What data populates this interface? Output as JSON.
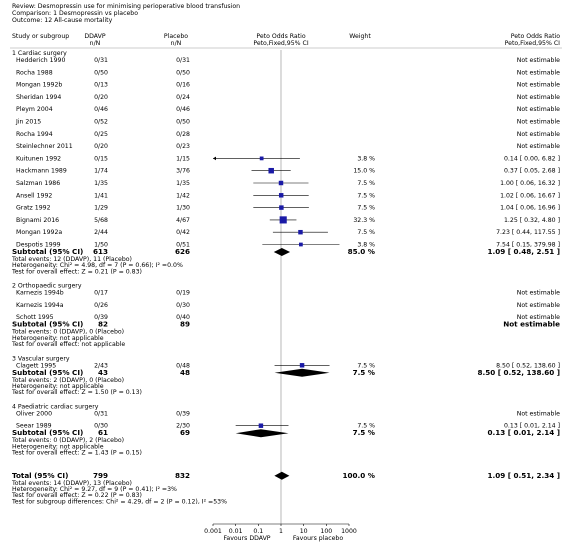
{
  "chart_data": {
    "type": "forest",
    "review": "Review:  Desmopressin use for minimising perioperative blood transfusion",
    "comparison": "Comparison:  1 Desmopressin vs placebo",
    "outcome": "Outcome:  12 All-cause mortality",
    "headers": [
      "Study or subgroup",
      "DDAVP",
      "n/N",
      "Placebo",
      "n/N",
      "Peto Odds Ratio",
      "Peto,Fixed,95% CI",
      "Weight",
      "Peto Odds Ratio",
      "Peto,Fixed,95% CI"
    ],
    "log_scale": true,
    "color": "#1a1aa6",
    "xlim": [
      0.001,
      1000
    ],
    "xticks": [
      0.001,
      0.01,
      0.1,
      1,
      10,
      100,
      1000
    ],
    "favours_left": "Favours DDAVP",
    "favours_right": "Favours placebo",
    "groups": [
      {
        "title": "1 Cardiac surgery",
        "studies": [
          {
            "name": "Hedderich 1990",
            "n1": "0/31",
            "n2": "0/31",
            "value_label": "Not estimable"
          },
          {
            "name": "Rocha 1988",
            "n1": "0/50",
            "n2": "0/50",
            "value_label": "Not estimable"
          },
          {
            "name": "Mongan 1992b",
            "n1": "0/13",
            "n2": "0/16",
            "value_label": "Not estimable"
          },
          {
            "name": "Sheridan 1994",
            "n1": "0/20",
            "n2": "0/24",
            "value_label": "Not estimable"
          },
          {
            "name": "Pleym 2004",
            "n1": "0/46",
            "n2": "0/46",
            "value_label": "Not estimable"
          },
          {
            "name": "Jin 2015",
            "n1": "0/52",
            "n2": "0/50",
            "value_label": "Not estimable"
          },
          {
            "name": "Rocha 1994",
            "n1": "0/25",
            "n2": "0/28",
            "value_label": "Not estimable"
          },
          {
            "name": "Steinlechner 2011",
            "n1": "0/20",
            "n2": "0/23",
            "value_label": "Not estimable"
          },
          {
            "name": "Kuitunen 1992",
            "n1": "0/15",
            "n2": "1/15",
            "weight": 3.8,
            "weight_label": "3.8 %",
            "or": 0.14,
            "ci": [
              0.0,
              6.82
            ],
            "value_label": "0.14 [ 0.00, 6.82 ]"
          },
          {
            "name": "Hackmann 1989",
            "n1": "1/74",
            "n2": "3/76",
            "weight": 15.0,
            "weight_label": "15.0 %",
            "or": 0.37,
            "ci": [
              0.05,
              2.68
            ],
            "value_label": "0.37 [ 0.05, 2.68 ]"
          },
          {
            "name": "Salzman 1986",
            "n1": "1/35",
            "n2": "1/35",
            "weight": 7.5,
            "weight_label": "7.5 %",
            "or": 1.0,
            "ci": [
              0.06,
              16.32
            ],
            "value_label": "1.00 [ 0.06, 16.32 ]"
          },
          {
            "name": "Ansell 1992",
            "n1": "1/41",
            "n2": "1/42",
            "weight": 7.5,
            "weight_label": "7.5 %",
            "or": 1.02,
            "ci": [
              0.06,
              16.67
            ],
            "value_label": "1.02 [ 0.06, 16.67 ]"
          },
          {
            "name": "Gratz 1992",
            "n1": "1/29",
            "n2": "1/30",
            "weight": 7.5,
            "weight_label": "7.5 %",
            "or": 1.04,
            "ci": [
              0.06,
              16.96
            ],
            "value_label": "1.04 [ 0.06, 16.96 ]"
          },
          {
            "name": "Bignami 2016",
            "n1": "5/68",
            "n2": "4/67",
            "weight": 32.3,
            "weight_label": "32.3 %",
            "or": 1.25,
            "ci": [
              0.32,
              4.8
            ],
            "value_label": "1.25 [ 0.32, 4.80 ]"
          },
          {
            "name": "Mongan 1992a",
            "n1": "2/44",
            "n2": "0/42",
            "weight": 7.5,
            "weight_label": "7.5 %",
            "or": 7.23,
            "ci": [
              0.44,
              117.55
            ],
            "value_label": "7.23 [ 0.44, 117.55 ]"
          },
          {
            "name": "Despotis 1999",
            "n1": "1/50",
            "n2": "0/51",
            "weight": 3.8,
            "weight_label": "3.8 %",
            "or": 7.54,
            "ci": [
              0.15,
              379.98
            ],
            "value_label": "7.54 [ 0.15, 379.98 ]"
          }
        ],
        "subtotal": {
          "label": "Subtotal (95% CI)",
          "n1": 613,
          "n2": 626,
          "weight_label": "85.0 %",
          "or": 1.09,
          "ci": [
            0.48,
            2.51
          ],
          "value_label": "1.09 [ 0.48, 2.51 ]"
        },
        "notes": [
          "Total events: 12 (DDAVP), 11 (Placebo)",
          "Heterogeneity: Chi² = 4.98, df = 7 (P = 0.66); I² =0.0%",
          "Test for overall effect: Z = 0.21 (P = 0.83)"
        ]
      },
      {
        "title": "2 Orthopaedic surgery",
        "studies": [
          {
            "name": "Karnezis 1994b",
            "n1": "0/17",
            "n2": "0/19",
            "value_label": "Not estimable"
          },
          {
            "name": "Karnezis 1994a",
            "n1": "0/26",
            "n2": "0/30",
            "value_label": "Not estimable"
          },
          {
            "name": "Schott 1995",
            "n1": "0/39",
            "n2": "0/40",
            "value_label": "Not estimable"
          }
        ],
        "subtotal": {
          "label": "Subtotal (95% CI)",
          "n1": 82,
          "n2": 89,
          "value_label": "Not estimable"
        },
        "notes": [
          "Total events: 0 (DDAVP), 0 (Placebo)",
          "Heterogeneity: not applicable",
          "Test for overall effect: not applicable"
        ]
      },
      {
        "title": "3 Vascular surgery",
        "studies": [
          {
            "name": "Clagett 1995",
            "n1": "2/43",
            "n2": "0/48",
            "weight": 7.5,
            "weight_label": "7.5 %",
            "or": 8.5,
            "ci": [
              0.52,
              138.6
            ],
            "value_label": "8.50 [ 0.52, 138.60 ]"
          }
        ],
        "subtotal": {
          "label": "Subtotal (95% CI)",
          "n1": 43,
          "n2": 48,
          "weight_label": "7.5 %",
          "or": 8.5,
          "ci": [
            0.52,
            138.6
          ],
          "value_label": "8.50 [ 0.52, 138.60 ]"
        },
        "notes": [
          "Total events: 2 (DDAVP), 0 (Placebo)",
          "Heterogeneity: not applicable",
          "Test for overall effect: Z = 1.50 (P = 0.13)"
        ]
      },
      {
        "title": "4 Paediatric cardiac surgery",
        "studies": [
          {
            "name": "Oliver 2000",
            "n1": "0/31",
            "n2": "0/39",
            "value_label": "Not estimable"
          },
          {
            "name": "Seear 1989",
            "n1": "0/30",
            "n2": "2/30",
            "weight": 7.5,
            "weight_label": "7.5 %",
            "or": 0.13,
            "ci": [
              0.01,
              2.14
            ],
            "value_label": "0.13 [ 0.01, 2.14 ]"
          }
        ],
        "subtotal": {
          "label": "Subtotal (95% CI)",
          "n1": 61,
          "n2": 69,
          "weight_label": "7.5 %",
          "or": 0.13,
          "ci": [
            0.01,
            2.14
          ],
          "value_label": "0.13 [ 0.01, 2.14 ]"
        },
        "notes": [
          "Total events: 0 (DDAVP), 2 (Placebo)",
          "Heterogeneity: not applicable",
          "Test for overall effect: Z = 1.43 (P = 0.15)"
        ]
      }
    ],
    "total": {
      "label": "Total (95% CI)",
      "n1": 799,
      "n2": 832,
      "weight_label": "100.0 %",
      "or": 1.09,
      "ci": [
        0.51,
        2.34
      ],
      "value_label": "1.09 [ 0.51, 2.34 ]"
    },
    "total_notes": [
      "Total events: 14 (DDAVP), 13 (Placebo)",
      "Heterogeneity: Chi² = 9.27, df = 9 (P = 0.41); I² =3%",
      "Test for overall effect: Z = 0.22 (P = 0.83)",
      "Test for subgroup differences: Chi² = 4.29, df = 2 (P = 0.12), I² =53%"
    ]
  }
}
